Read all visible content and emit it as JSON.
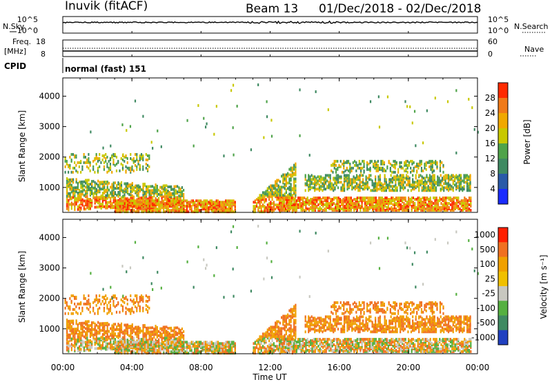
{
  "header": {
    "title": "Inuvik (fitACF)",
    "beam": "Beam 13",
    "date_range": "01/Dec/2018 - 02/Dec/2018"
  },
  "top_panels": {
    "nsky_label": "N.Sky",
    "nsearch_label": "N.Search",
    "noise_ticks": [
      "10^5",
      "10^0"
    ],
    "freq_label_1": "Freq.",
    "freq_label_2": "[MHz]",
    "freq_ticks": [
      "18",
      "8"
    ],
    "nave_label": "Nave",
    "nave_ticks": [
      "60",
      "0"
    ],
    "cpid_label": "CPID",
    "cpid_value": "normal (fast) 151"
  },
  "chart_data": [
    {
      "type": "heatmap",
      "panel": "power",
      "xlabel": "Time UT",
      "ylabel": "Slant Range [km]",
      "x_ticks": [
        "00:00",
        "04:00",
        "08:00",
        "12:00",
        "16:00",
        "20:00",
        "00:00"
      ],
      "y_ticks": [
        1000,
        2000,
        3000,
        4000
      ],
      "ylim": [
        180,
        4600
      ],
      "xlim_hours": [
        0,
        24
      ],
      "colorbar_label": "Power [dB]",
      "colorbar_ticks": [
        4,
        8,
        12,
        16,
        20,
        24,
        28
      ],
      "colorbar_colors": [
        "#1a2bff",
        "#2a5aa8",
        "#3f8a62",
        "#4fa34a",
        "#c8c800",
        "#f0a800",
        "#f07a18",
        "#ff2a00"
      ]
    },
    {
      "type": "heatmap",
      "panel": "velocity",
      "xlabel": "Time UT",
      "ylabel": "Slant Range [km]",
      "x_ticks": [
        "00:00",
        "04:00",
        "08:00",
        "12:00",
        "16:00",
        "20:00",
        "00:00"
      ],
      "y_ticks": [
        1000,
        2000,
        3000,
        4000
      ],
      "ylim": [
        180,
        4600
      ],
      "xlim_hours": [
        0,
        24
      ],
      "colorbar_label": "Velocity [m s⁻¹]",
      "colorbar_ticks": [
        1000,
        500,
        100,
        25,
        -25,
        -100,
        -500,
        -1000
      ],
      "colorbar_colors": [
        "#2040c0",
        "#3f8a62",
        "#55b040",
        "#c8c8c0",
        "#f0c000",
        "#f0a000",
        "#f07020",
        "#ff2000"
      ]
    }
  ]
}
